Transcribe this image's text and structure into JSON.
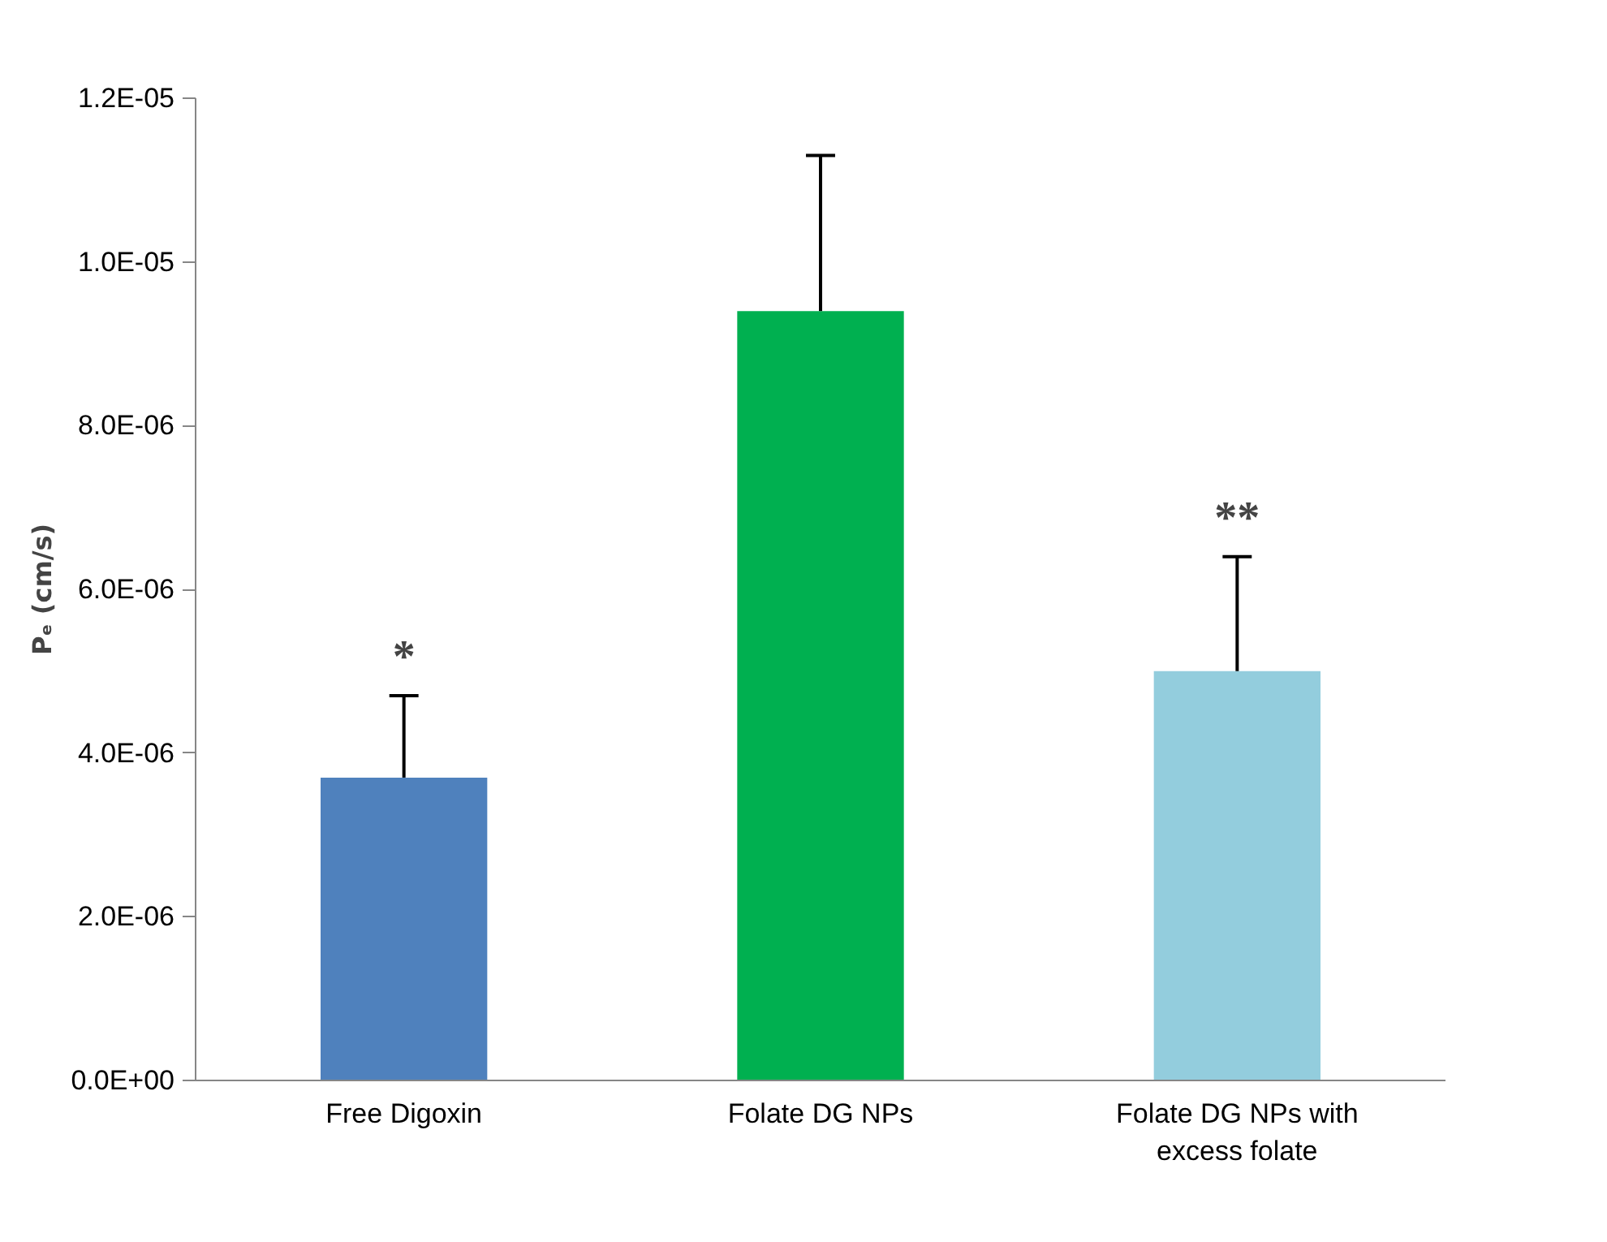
{
  "chart_data": {
    "type": "bar",
    "ylabel": "Pₑ (cm/s)",
    "categories": [
      "Free Digoxin",
      "Folate DG NPs",
      "Folate DG NPs with excess folate"
    ],
    "values": [
      3.7e-06,
      9.4e-06,
      5e-06
    ],
    "colors": [
      "#4f81bd",
      "#00b050",
      "#93cddd"
    ],
    "errors": [
      [
        3.7e-06,
        4.7e-06
      ],
      [
        9.4e-06,
        1.13e-05
      ],
      [
        5e-06,
        6.4e-06
      ]
    ],
    "ylim": [
      0,
      1.2e-05
    ],
    "yticks": [
      {
        "value": 0,
        "label": "0.0E+00"
      },
      {
        "value": 2e-06,
        "label": "2.0E-06"
      },
      {
        "value": 4e-06,
        "label": "4.0E-06"
      },
      {
        "value": 6e-06,
        "label": "6.0E-06"
      },
      {
        "value": 8e-06,
        "label": "8.0E-06"
      },
      {
        "value": 1e-05,
        "label": "1.0E-05"
      },
      {
        "value": 1.2e-05,
        "label": "1.2E-05"
      }
    ],
    "annotations": [
      "*",
      "**"
    ],
    "grid": false
  }
}
